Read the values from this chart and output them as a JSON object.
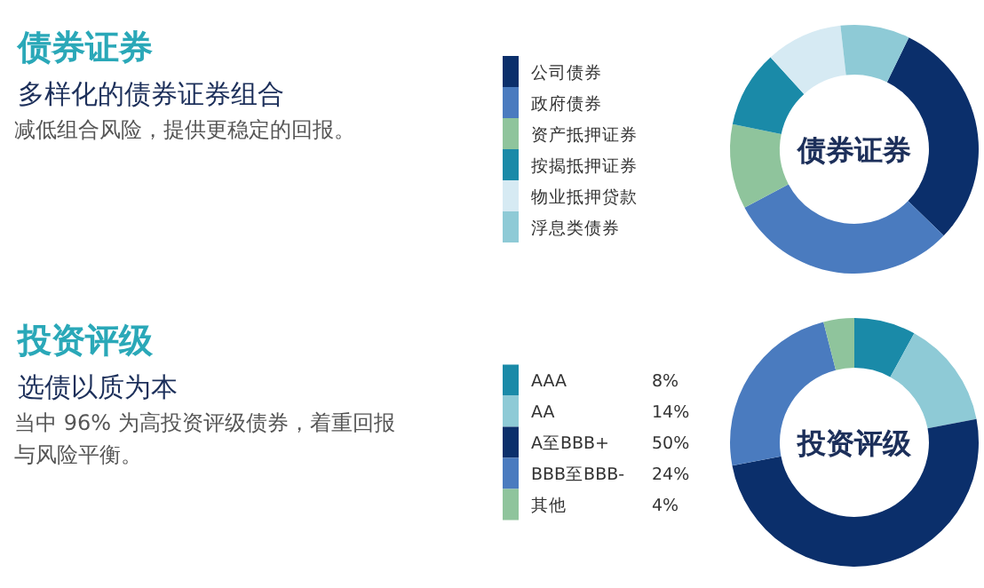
{
  "chart_data": [
    {
      "type": "donut",
      "title": "债券证券",
      "subtitle": "多样化的债券证券组合",
      "annotations": [
        "减低组合风险，提供更稳定的回报。",
        "债券证券"
      ],
      "legend": "left",
      "categories": [
        "公司债券",
        "政府债券",
        "资产抵押证券",
        "按揭抵押证券",
        "物业抵押贷款",
        "浮息类债券"
      ],
      "values": [
        30,
        30,
        11,
        10,
        10,
        9
      ],
      "colors": [
        "#0b2f6b",
        "#4a7bbf",
        "#8fc49c",
        "#1a8aa8",
        "#d6eaf3",
        "#8ecad6"
      ]
    },
    {
      "type": "donut",
      "title": "投资评级",
      "subtitle": "选债以质为本",
      "annotations": [
        "当中 96% 为高投资评级债券，着重回报与风险平衡。",
        "投资评级"
      ],
      "legend": "left",
      "categories": [
        "AAA",
        "AA",
        "A至BBB+",
        "BBB至BBB-",
        "其他"
      ],
      "values": [
        8,
        14,
        50,
        24,
        4
      ],
      "value_labels": [
        "8%",
        "14%",
        "50%",
        "24%",
        "4%"
      ],
      "colors": [
        "#1a8aa8",
        "#8ecad6",
        "#0b2f6b",
        "#4a7bbf",
        "#8fc49c"
      ]
    }
  ]
}
